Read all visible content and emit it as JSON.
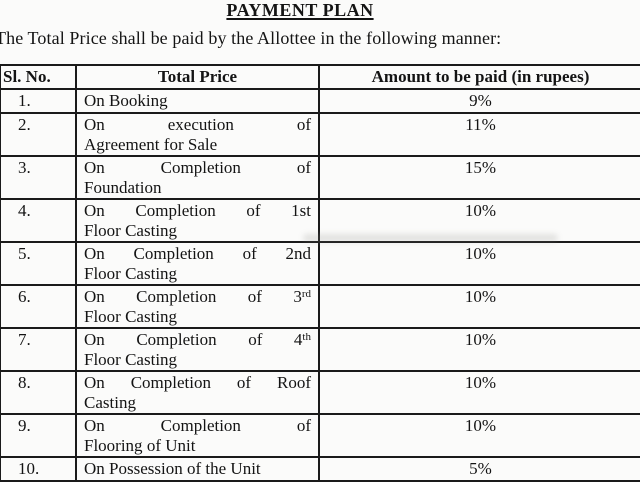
{
  "document": {
    "title": "PAYMENT PLAN",
    "intro": "The Total Price shall be paid by the Allottee in the following manner:"
  },
  "table": {
    "headers": [
      "Sl. No.",
      "Total Price",
      "Amount to be paid (in rupees)"
    ],
    "rows": [
      {
        "sl_no": "1.",
        "milestone_lines": [
          [
            "On",
            "Booking"
          ]
        ],
        "amount": "9%"
      },
      {
        "sl_no": "2.",
        "milestone_lines": [
          [
            "On",
            "execution",
            "of"
          ],
          [
            "Agreement",
            "for",
            "Sale"
          ]
        ],
        "amount": "11%"
      },
      {
        "sl_no": "3.",
        "milestone_lines": [
          [
            "On",
            "Completion",
            "of"
          ],
          [
            "Foundation"
          ]
        ],
        "amount": "15%"
      },
      {
        "sl_no": "4.",
        "milestone_lines": [
          [
            "On",
            "Completion",
            "of",
            "1st"
          ],
          [
            "Floor",
            "Casting"
          ]
        ],
        "amount": "10%"
      },
      {
        "sl_no": "5.",
        "milestone_lines": [
          [
            "On",
            "Completion",
            "of",
            "2nd"
          ],
          [
            "Floor",
            "Casting"
          ]
        ],
        "amount": "10%"
      },
      {
        "sl_no": "6.",
        "milestone_lines": [
          [
            "On",
            "Completion",
            "of",
            "3^rd"
          ],
          [
            "Floor",
            "Casting"
          ]
        ],
        "amount": "10%"
      },
      {
        "sl_no": "7.",
        "milestone_lines": [
          [
            "On",
            "Completion",
            "of",
            "4^th"
          ],
          [
            "Floor",
            "Casting"
          ]
        ],
        "amount": "10%"
      },
      {
        "sl_no": "8.",
        "milestone_lines": [
          [
            "On",
            "Completion",
            "of",
            "Roof"
          ],
          [
            "Casting"
          ]
        ],
        "amount": "10%"
      },
      {
        "sl_no": "9.",
        "milestone_lines": [
          [
            "On",
            "Completion",
            "of"
          ],
          [
            "Flooring",
            "of",
            "Unit"
          ]
        ],
        "amount": "10%"
      },
      {
        "sl_no": "10.",
        "milestone_lines": [
          [
            "On",
            "Possession",
            "of",
            "the",
            "Unit"
          ]
        ],
        "amount": "5%"
      }
    ]
  }
}
